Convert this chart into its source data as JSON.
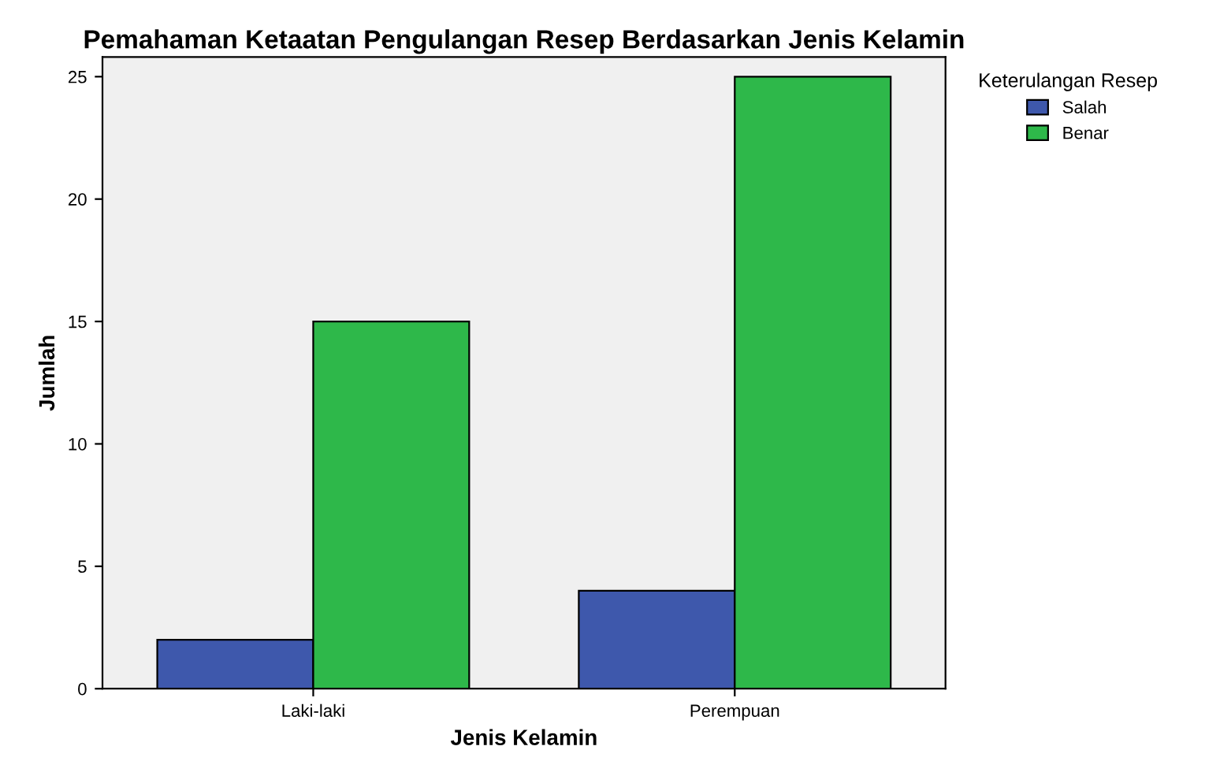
{
  "chart_data": {
    "type": "bar",
    "title": "Pemahaman Ketaatan Pengulangan Resep Berdasarkan Jenis Kelamin",
    "xlabel": "Jenis Kelamin",
    "ylabel": "Jumlah",
    "legend_title": "Keterulangan Resep",
    "categories": [
      "Laki-laki",
      "Perempuan"
    ],
    "series": [
      {
        "name": "Salah",
        "color": "#3e58ac",
        "values": [
          2,
          4
        ]
      },
      {
        "name": "Benar",
        "color": "#2eb84a",
        "values": [
          15,
          25
        ]
      }
    ],
    "ylim": [
      0,
      25.8
    ],
    "yticks": [
      0,
      5,
      10,
      15,
      20,
      25
    ],
    "grid": false,
    "legend": "top right"
  }
}
